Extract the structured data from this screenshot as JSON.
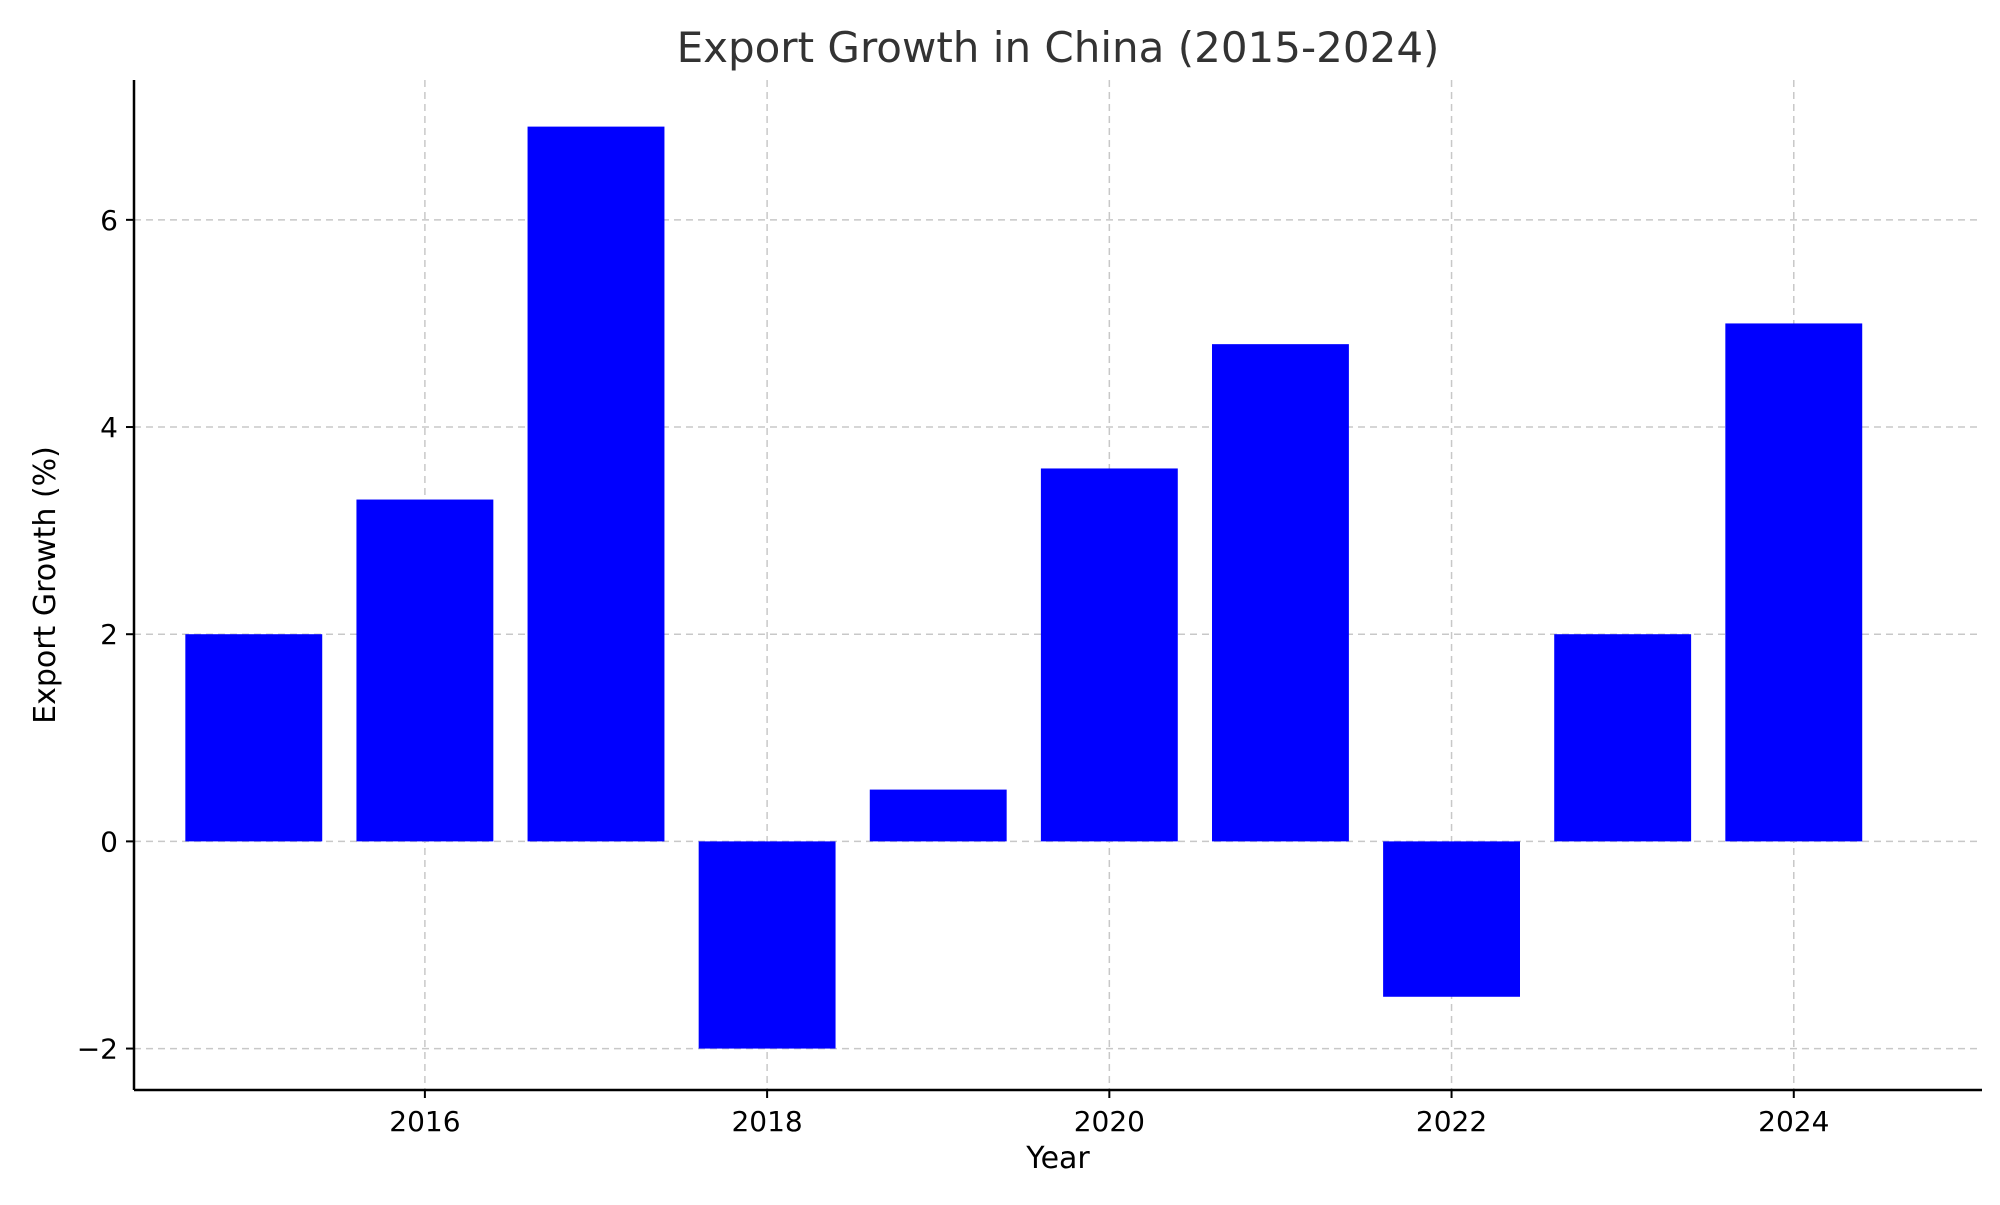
{
  "chart_data": {
    "type": "bar",
    "title": "Export Growth in China (2015-2024)",
    "xlabel": "Year",
    "ylabel": "Export Growth (%)",
    "categories": [
      2015,
      2016,
      2017,
      2018,
      2019,
      2020,
      2021,
      2022,
      2023,
      2024
    ],
    "values": [
      2.0,
      3.3,
      6.9,
      -2.0,
      0.5,
      3.6,
      4.8,
      -1.5,
      2.0,
      5.0
    ],
    "xlim": [
      2014.3,
      2025.1
    ],
    "ylim": [
      -2.4,
      7.35
    ],
    "xticks": [
      2016,
      2018,
      2020,
      2022,
      2024
    ],
    "yticks": [
      -2,
      0,
      2,
      4,
      6
    ],
    "ytick_labels": [
      "−2",
      "0",
      "2",
      "4",
      "6"
    ],
    "grid": true,
    "legend": "none",
    "bar_color": "#0000ff"
  }
}
